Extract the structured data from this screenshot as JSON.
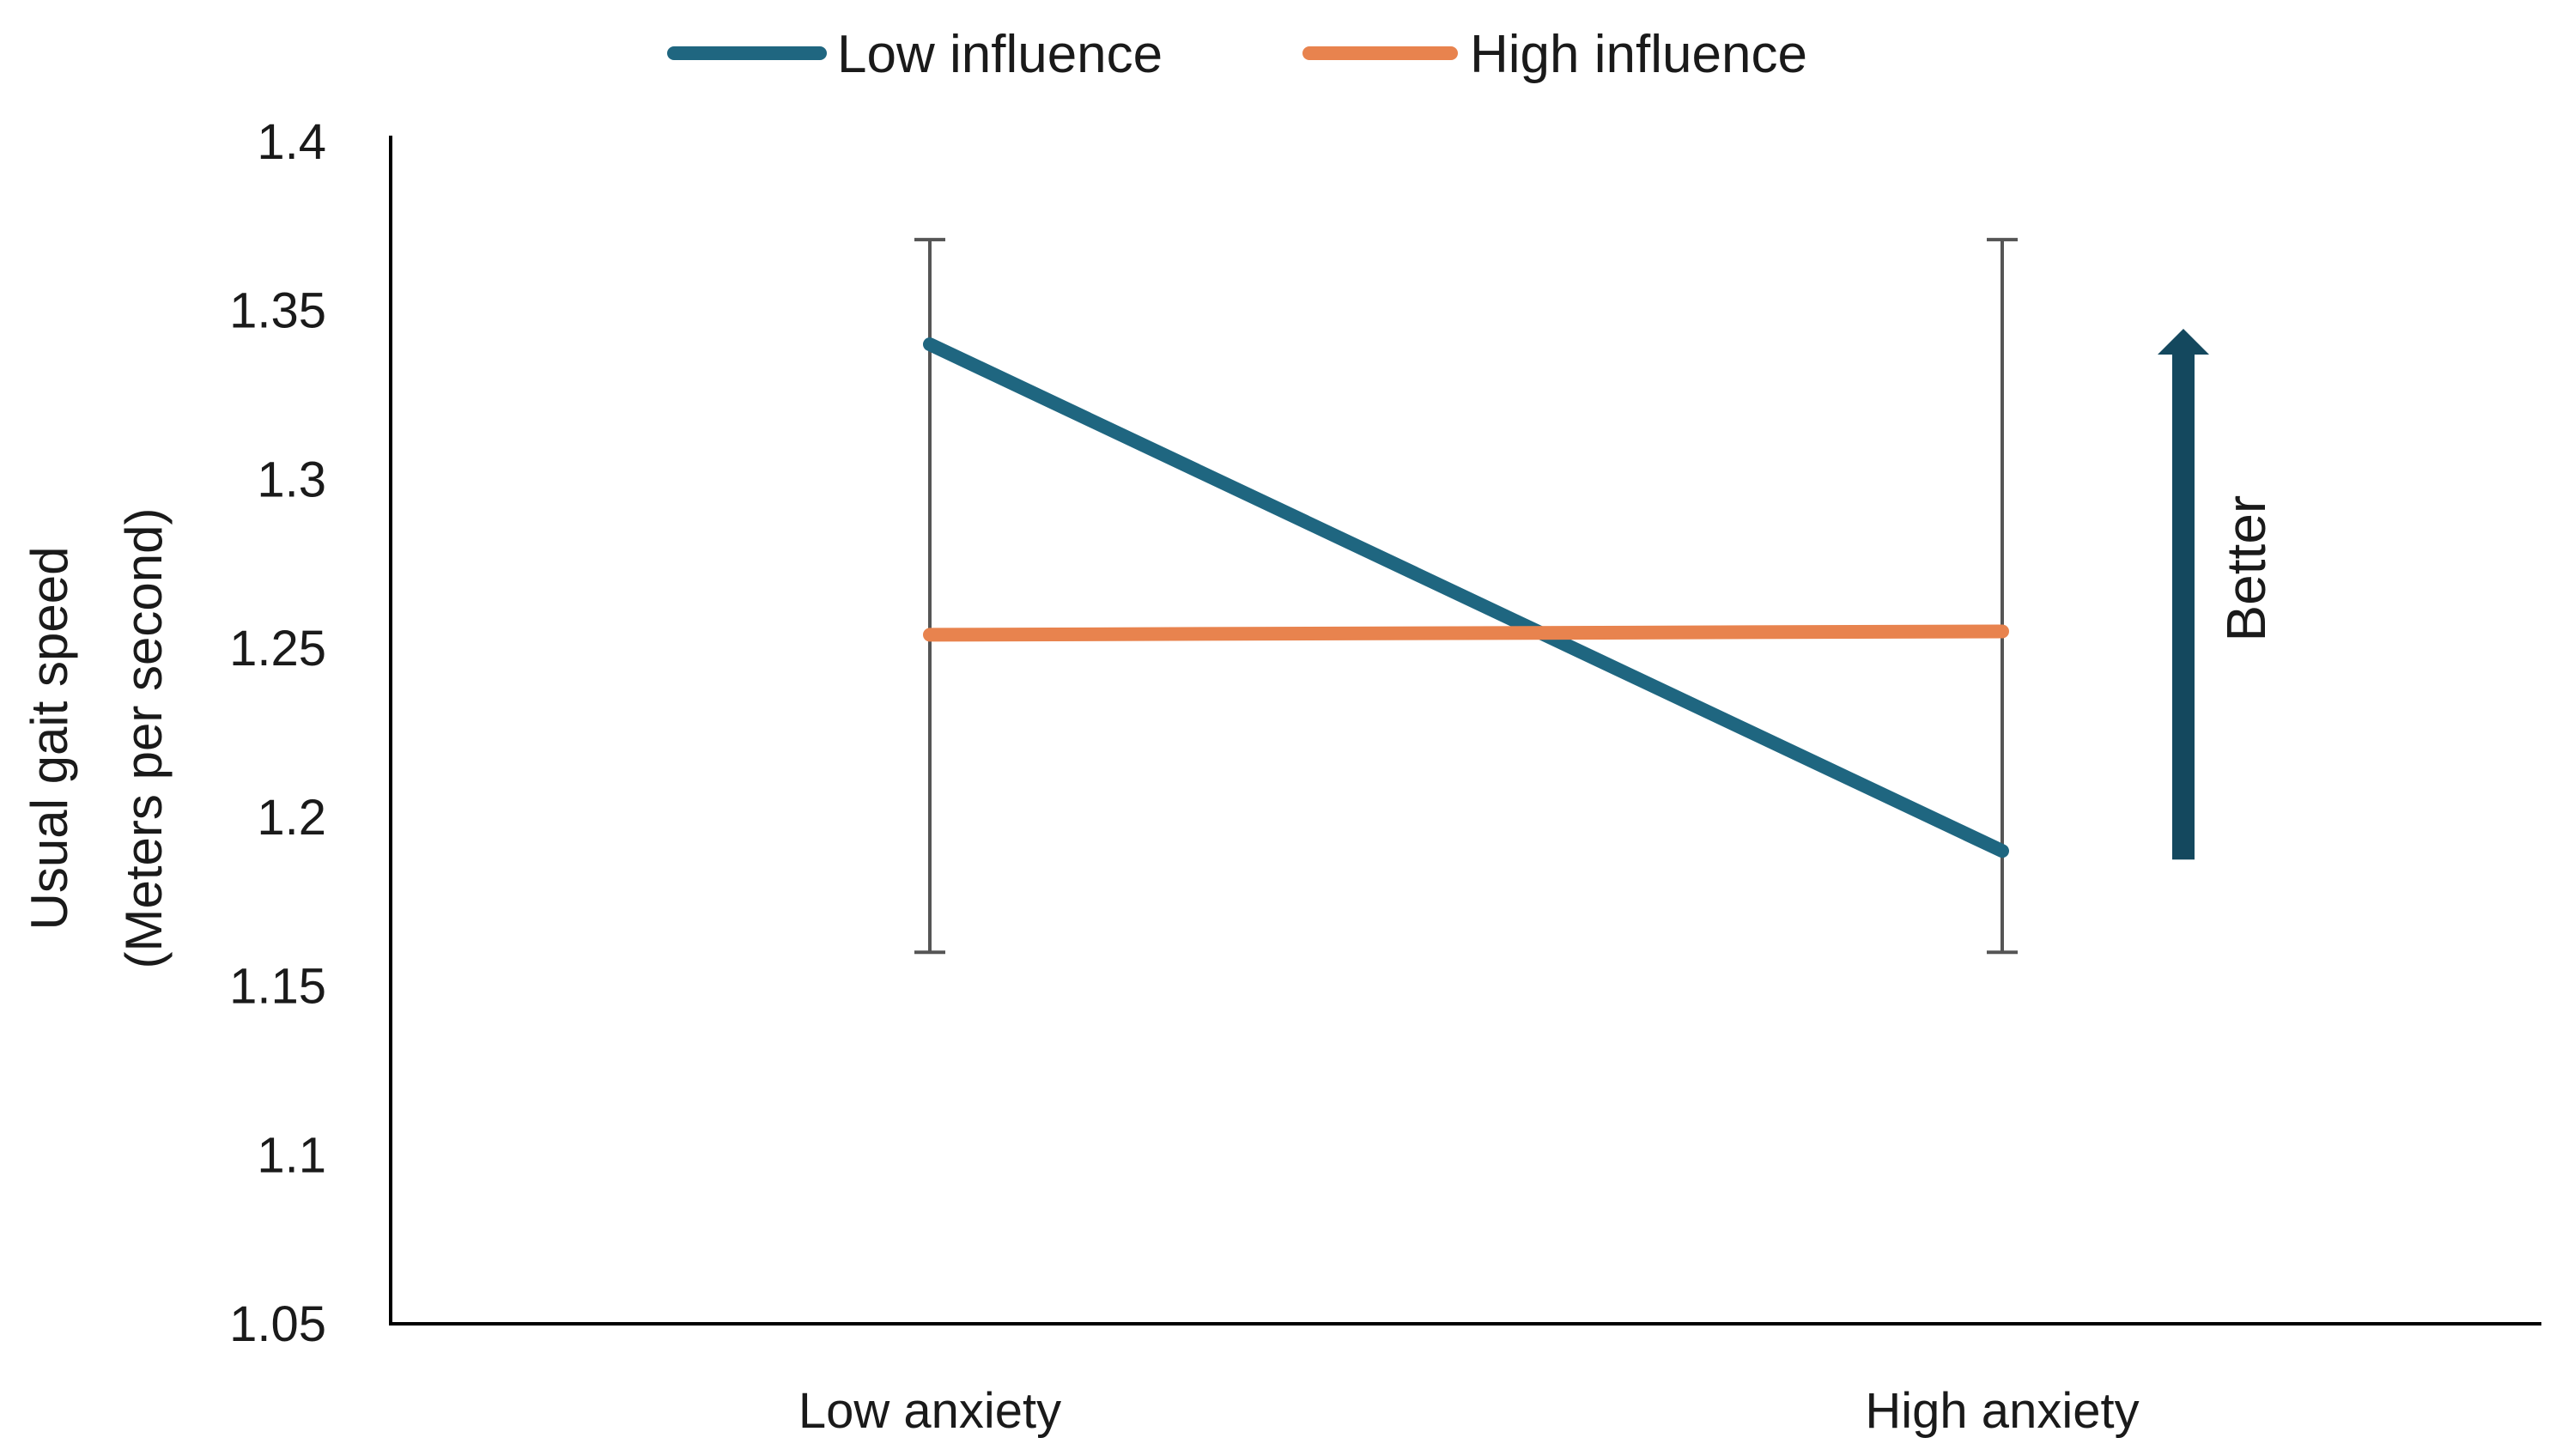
{
  "chart_data": {
    "type": "line",
    "title": "",
    "xlabel": "",
    "ylabel_line1": "Usual gait speed",
    "ylabel_line2": "(Meters per second)",
    "categories": [
      "Low anxiety",
      "High anxiety"
    ],
    "ylim": [
      1.05,
      1.4
    ],
    "yticks": [
      1.05,
      1.1,
      1.15,
      1.2,
      1.25,
      1.3,
      1.35,
      1.4
    ],
    "ytick_labels": [
      "1.05",
      "1.1",
      "1.15",
      "1.2",
      "1.25",
      "1.3",
      "1.35",
      "1.4"
    ],
    "series": [
      {
        "name": "Low influence",
        "color": "#1f6680",
        "values": [
          1.34,
          1.19
        ]
      },
      {
        "name": "High influence",
        "color": "#e8834e",
        "values": [
          1.254,
          1.255
        ]
      }
    ],
    "error_bars": [
      {
        "category": "Low anxiety",
        "low": 1.16,
        "high": 1.371
      },
      {
        "category": "High anxiety",
        "low": 1.16,
        "high": 1.371
      }
    ],
    "legend_position": "top-center",
    "annotation": {
      "text": "Better",
      "direction": "up",
      "arrow_from": 1.19,
      "arrow_to": 1.34,
      "color": "#14485e"
    },
    "grid": false
  }
}
